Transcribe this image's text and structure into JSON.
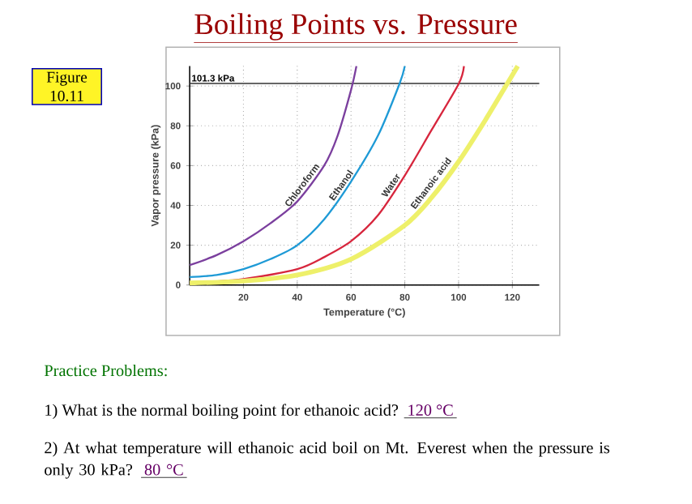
{
  "chart_data": {
    "type": "line",
    "title": "Boiling Points vs. Pressure",
    "xlabel": "Temperature (°C)",
    "ylabel": "Vapor pressure (kPa)",
    "xlim": [
      0,
      130
    ],
    "ylim": [
      0,
      110
    ],
    "xticks": [
      20,
      40,
      60,
      80,
      100,
      120
    ],
    "yticks": [
      0,
      20,
      40,
      60,
      80,
      100
    ],
    "grid": true,
    "ref_lines": [
      {
        "axis": "y",
        "value": 101.3,
        "label": "101.3 kPa",
        "color": "#333333"
      }
    ],
    "series": [
      {
        "name": "Chloroform",
        "color": "#7b3f9e",
        "x": [
          0,
          10,
          20,
          30,
          40,
          50,
          55,
          60,
          62
        ],
        "values": [
          10,
          15,
          22,
          31,
          42,
          60,
          75,
          98,
          110
        ]
      },
      {
        "name": "Ethanol",
        "color": "#1e9ad6",
        "x": [
          0,
          10,
          20,
          30,
          40,
          50,
          60,
          70,
          78,
          80
        ],
        "values": [
          4,
          5,
          8,
          13,
          20,
          33,
          52,
          75,
          101,
          110
        ]
      },
      {
        "name": "Water",
        "color": "#d7263d",
        "x": [
          0,
          20,
          40,
          50,
          60,
          70,
          80,
          90,
          100,
          102
        ],
        "values": [
          1,
          3,
          8,
          14,
          22,
          35,
          55,
          78,
          101,
          110
        ]
      },
      {
        "name": "Ethanoic acid",
        "color": "#eef06a",
        "x": [
          0,
          20,
          40,
          60,
          80,
          90,
          100,
          110,
          118,
          122
        ],
        "values": [
          1,
          2,
          5,
          13,
          30,
          44,
          62,
          83,
          101,
          110
        ]
      }
    ],
    "annotations": [
      "Figure 10.11",
      "Practice Problems:",
      "1) What is the normal boiling point for ethanoic acid?",
      "120 °C",
      "2) At what temperature will ethanoic acid boil on Mt. Everest when the pressure is only 30 kPa?",
      "80 °C"
    ]
  }
}
